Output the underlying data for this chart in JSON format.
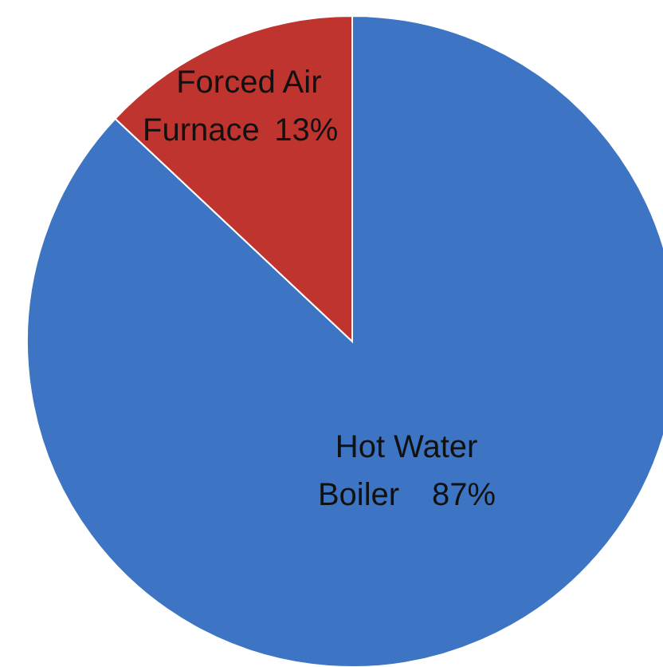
{
  "chart_data": {
    "type": "pie",
    "categories": [
      "Hot Water Boiler",
      "Forced Air Furnace"
    ],
    "values": [
      87,
      13
    ],
    "value_labels": [
      "87%",
      "13%"
    ],
    "colors": [
      "#3d75c4",
      "#c0342f"
    ]
  }
}
